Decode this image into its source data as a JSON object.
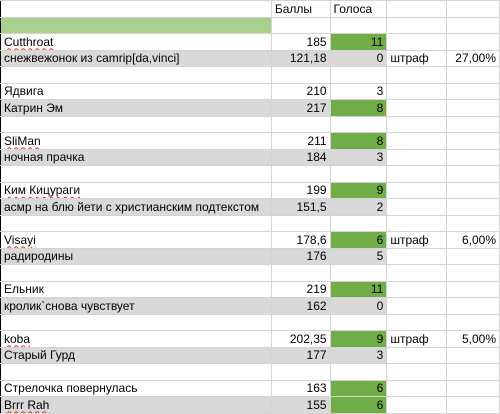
{
  "header": {
    "col_points": "Баллы",
    "col_votes": "Голоса"
  },
  "rows": [
    {
      "type": "header"
    },
    {
      "type": "green"
    },
    {
      "type": "entry",
      "name": "Cutthroat",
      "points": "185",
      "votes": "11",
      "votes_green": true,
      "gray": false,
      "underline": true
    },
    {
      "type": "entry",
      "name": "снежвежонок из camrip[da,vinci]",
      "points": "121,18",
      "votes": "0",
      "votes_green": false,
      "gray": true,
      "note": "штраф",
      "percent": "27,00%"
    },
    {
      "type": "blank"
    },
    {
      "type": "entry",
      "name": "Ядвига",
      "points": "210",
      "votes": "3",
      "votes_green": false,
      "gray": false
    },
    {
      "type": "entry",
      "name": "Катрин Эм",
      "points": "217",
      "votes": "8",
      "votes_green": true,
      "gray": true
    },
    {
      "type": "blank"
    },
    {
      "type": "entry",
      "name": "SliMan",
      "points": "211",
      "votes": "8",
      "votes_green": true,
      "gray": false,
      "underline": true
    },
    {
      "type": "entry",
      "name": "ночная прачка",
      "points": "184",
      "votes": "3",
      "votes_green": false,
      "gray": true
    },
    {
      "type": "blank"
    },
    {
      "type": "entry",
      "name": "Ким Кицураги",
      "points": "199",
      "votes": "9",
      "votes_green": true,
      "gray": false,
      "underline": true
    },
    {
      "type": "entry",
      "name": "асмр на блю йети с христианским подтекстом",
      "points": "151,5",
      "votes": "2",
      "votes_green": false,
      "gray": true
    },
    {
      "type": "blank"
    },
    {
      "type": "entry",
      "name": "Visayi",
      "points": "178,6",
      "votes": "6",
      "votes_green": true,
      "gray": false,
      "note": "штраф",
      "percent": "6,00%",
      "underline": true
    },
    {
      "type": "entry",
      "name": "радиродины",
      "points": "176",
      "votes": "5",
      "votes_green": false,
      "gray": true
    },
    {
      "type": "blank"
    },
    {
      "type": "entry",
      "name": "Ельник",
      "points": "219",
      "votes": "11",
      "votes_green": true,
      "gray": false
    },
    {
      "type": "entry",
      "name": "кролик`снова чувствует",
      "points": "162",
      "votes": "0",
      "votes_green": false,
      "gray": true
    },
    {
      "type": "blank"
    },
    {
      "type": "entry",
      "name": "koba",
      "points": "202,35",
      "votes": "9",
      "votes_green": true,
      "gray": false,
      "note": "штраф",
      "percent": "5,00%",
      "underline": true
    },
    {
      "type": "entry",
      "name": "Старый Гурд",
      "points": "177",
      "votes": "3",
      "votes_green": false,
      "gray": true
    },
    {
      "type": "blank"
    },
    {
      "type": "entry",
      "name": "Стрелочка повернулась",
      "points": "163",
      "votes": "6",
      "votes_green": true,
      "gray": false
    },
    {
      "type": "entry",
      "name": "Brrr Rah",
      "points": "155",
      "votes": "6",
      "votes_green": true,
      "gray": true,
      "underline": true
    }
  ],
  "colors": {
    "green_fill": "#70ad47",
    "light_green": "#a9d08e",
    "gray_fill": "#d9d9d9"
  }
}
